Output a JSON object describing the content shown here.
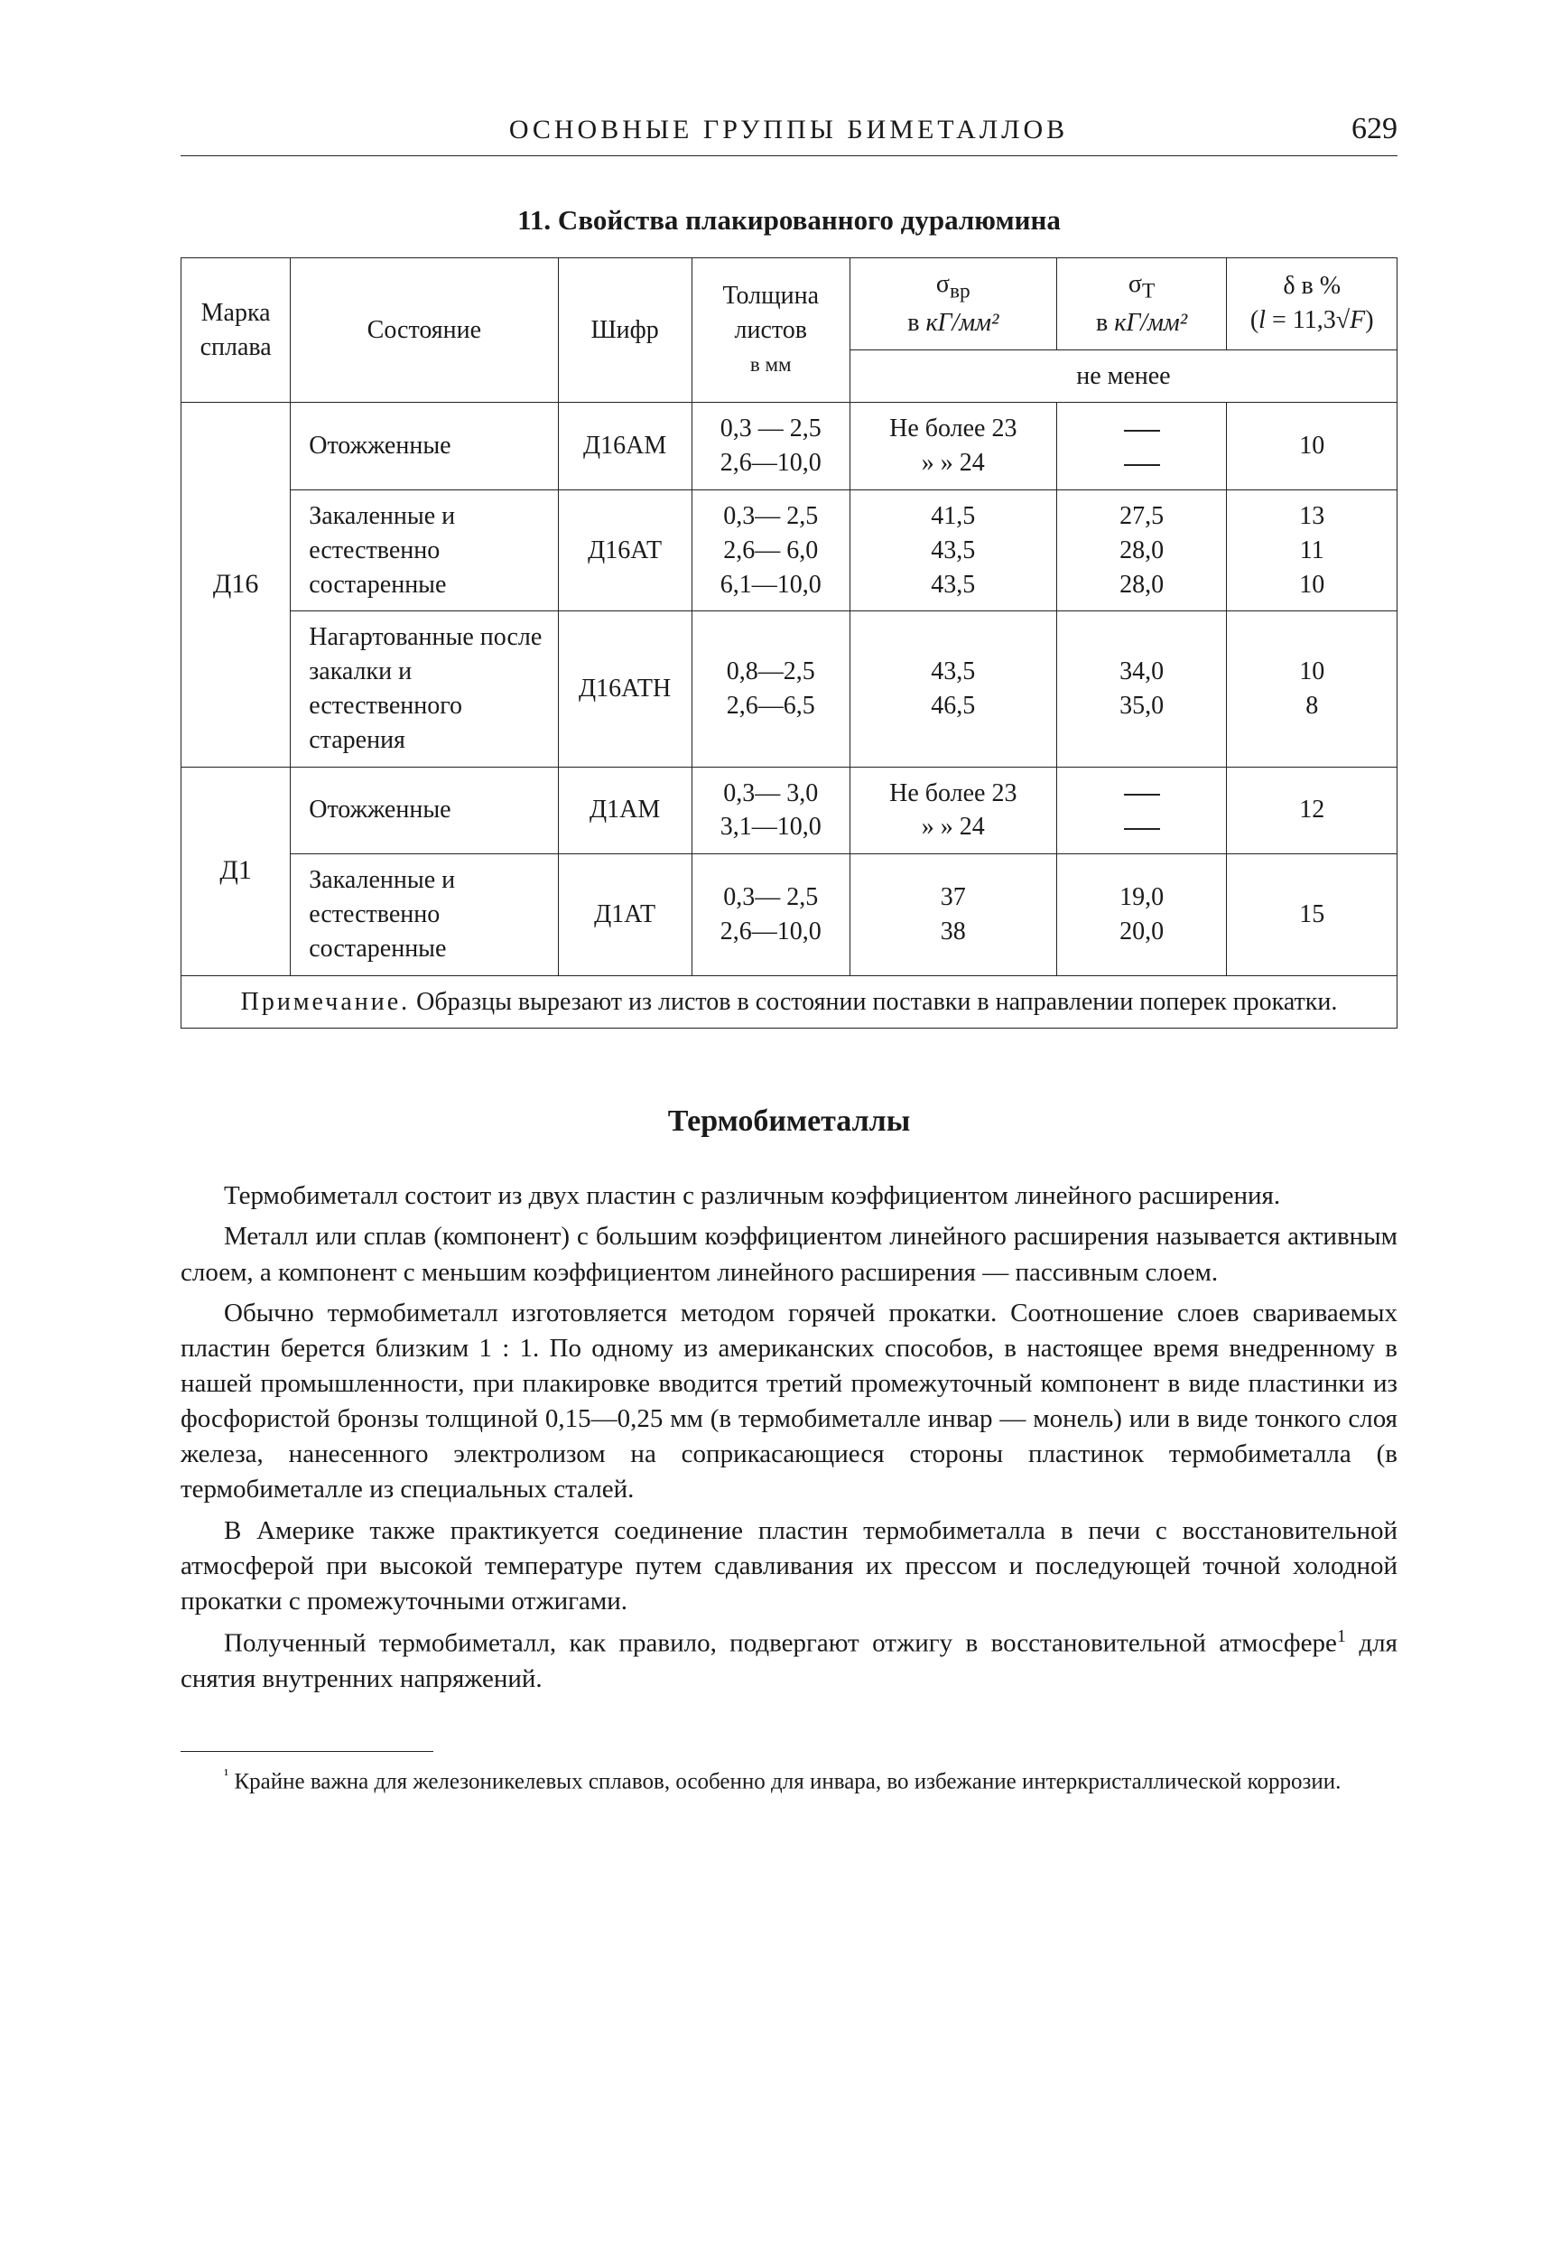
{
  "header": {
    "running_title": "ОСНОВНЫЕ ГРУППЫ БИМЕТАЛЛОВ",
    "page_number": "629"
  },
  "table": {
    "caption": "11. Свойства плакированного дуралюмина",
    "columns": {
      "alloy": "Марка сплава",
      "state": "Состояние",
      "code": "Шифр",
      "thickness_l1": "Толщина",
      "thickness_l2": "листов",
      "thickness_l3": "в мм",
      "sigma_vr_html": "σ<sub>вр</sub><br>в <span class='sub-em'>кГ/мм²</span>",
      "sigma_t_html": "σ<sub>T</sub><br>в <span class='sub-em'>кГ/мм²</span>",
      "delta_html": "δ в %<br>(<span class='sub-em'>l</span> = 11,3√<span class='sub-em'>F</span>)",
      "not_less": "не менее"
    },
    "rows": [
      {
        "alloy": "Д16",
        "rowspan": 3,
        "state": "Отожженные",
        "code": "Д16АМ",
        "thickness": "0,3 — 2,5<br>2,6—10,0",
        "sigma_vr": "Не более 23<br>» » 24",
        "sigma_t": "—<br>—",
        "delta": "10"
      },
      {
        "state": "Закаленные и естественно состаренные",
        "code": "Д16АТ",
        "thickness": "0,3— 2,5<br>2,6— 6,0<br>6,1—10,0",
        "sigma_vr": "41,5<br>43,5<br>43,5",
        "sigma_t": "27,5<br>28,0<br>28,0",
        "delta": "13<br>11<br>10"
      },
      {
        "state": "Нагартованные после закалки и естественного старения",
        "code": "Д16АТН",
        "thickness": "0,8—2,5<br>2,6—6,5",
        "sigma_vr": "43,5<br>46,5",
        "sigma_t": "34,0<br>35,0",
        "delta": "10<br>8"
      },
      {
        "alloy": "Д1",
        "rowspan": 2,
        "state": "Отожженные",
        "code": "Д1АМ",
        "thickness": "0,3— 3,0<br>3,1—10,0",
        "sigma_vr": "Не более 23<br>» » 24",
        "sigma_t": "—<br>—",
        "delta": "12"
      },
      {
        "state": "Закаленные и естественно состаренные",
        "code": "Д1АТ",
        "thickness": "0,3— 2,5<br>2,6—10,0",
        "sigma_vr": "37<br>38",
        "sigma_t": "19,0<br>20,0",
        "delta": "15"
      }
    ],
    "note_label": "Примечание.",
    "note_text": "Образцы вырезают из листов в состоянии поставки в направлении поперек прокатки."
  },
  "section": {
    "title": "Термобиметаллы",
    "paragraphs": [
      "Термобиметалл состоит из двух пластин с различным коэффициентом линейного расширения.",
      "Металл или сплав (компонент) с большим коэффициентом линейного расширения называется активным слоем, а компонент с меньшим коэффициентом линейного расширения — пассивным слоем.",
      "Обычно термобиметалл изготовляется методом горячей прокатки. Соотношение слоев свариваемых пластин берется близким 1 : 1. По одному из американских способов, в настоящее время внедренному в нашей промышленности, при плакировке вводится третий промежуточный компонент в виде пластинки из фосфористой бронзы толщиной 0,15—0,25 мм (в термобиметалле инвар — монель) или в виде тонкого слоя железа, нанесенного электролизом на соприкасающиеся стороны пластинок термобиметалла (в термобиметалле из специальных сталей.",
      "В Америке также практикуется соединение пластин термобиметалла в печи с восстановительной атмосферой при высокой температуре путем сдавливания их прессом и последующей точной холодной прокатки с промежуточными отжигами.",
      "Полученный термобиметалл, как правило, подвергают отжигу в восстановительной атмосфере¹ для снятия внутренних напряжений."
    ]
  },
  "footnote": {
    "marker": "¹",
    "text": "Крайне важна для железоникелевых сплавов, особенно для инвара, во избежание интеркристаллической коррозии."
  }
}
